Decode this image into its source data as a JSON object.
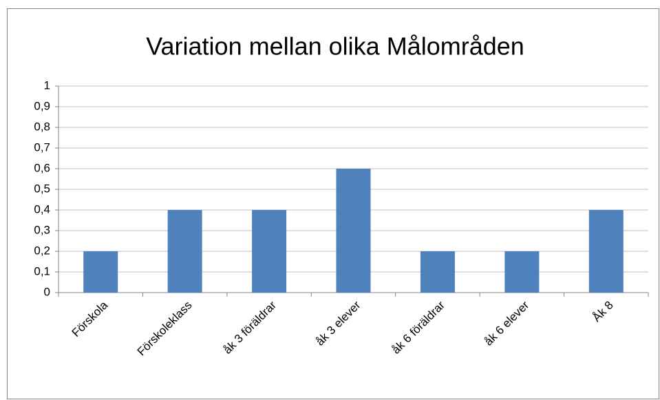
{
  "chart_data": {
    "type": "bar",
    "title": "Variation mellan olika Målområden",
    "categories": [
      "Förskola",
      "Förskoleklass",
      "åk 3 föräldrar",
      "åk 3 elever",
      "åk 6 föräldrar",
      "åk 6 elever",
      "Åk 8"
    ],
    "values": [
      0.2,
      0.4,
      0.4,
      0.6,
      0.2,
      0.2,
      0.4
    ],
    "color": "#4f81bd",
    "ylim": [
      0,
      1
    ],
    "yticks": [
      0,
      {
        "value": 0.1,
        "label": "0,1"
      },
      {
        "value": 0.2,
        "label": "0,2"
      },
      {
        "value": 0.3,
        "label": "0,3"
      },
      {
        "value": 0.4,
        "label": "0,4"
      },
      {
        "value": 0.5,
        "label": "0,5"
      },
      {
        "value": 0.6,
        "label": "0,6"
      },
      {
        "value": 0.7,
        "label": "0,7"
      },
      {
        "value": 0.8,
        "label": "0,8"
      },
      {
        "value": 0.9,
        "label": "0,9"
      },
      1
    ],
    "grid": true
  }
}
